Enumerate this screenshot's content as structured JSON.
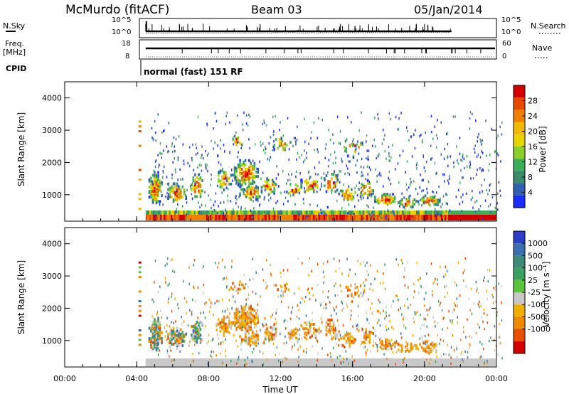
{
  "header": {
    "station": "McMurdo (fitACF)",
    "beam": "Beam 03",
    "date": "05/Jan/2014"
  },
  "left_labels": {
    "nsky": "N.Sky",
    "freq": "Freq.",
    "freq_unit": "[MHz]",
    "cpid": "CPID"
  },
  "right_labels": {
    "nsearch": "N.Search",
    "nave": "Nave"
  },
  "cpid_text": "normal (fast) 151 RF",
  "chart_data": [
    {
      "type": "line",
      "panel": "noise",
      "ytick_labels_left": [
        "10^5",
        "10^0"
      ],
      "ytick_labels_right": [
        "10^5",
        "10^0"
      ],
      "data_start": "04:30",
      "data_end": "21:30"
    },
    {
      "type": "line",
      "panel": "frequency",
      "ytick_labels_left": [
        "18",
        "8"
      ],
      "ytick_labels_right": [
        "60",
        "0"
      ],
      "data_start": "04:30",
      "data_end": "24:00"
    },
    {
      "type": "heatmap",
      "panel": "power",
      "ylabel": "Slant Range [km]",
      "yticks": [
        "1000",
        "2000",
        "3000",
        "4000"
      ],
      "ylim": [
        180,
        4500
      ],
      "colorbar_label": "Power [dB]",
      "colorbar_ticks": [
        "4",
        "8",
        "12",
        "16",
        "20",
        "24",
        "28"
      ],
      "colorbar_colors": [
        "#1a2cff",
        "#3260b0",
        "#3b8a6b",
        "#3cae5a",
        "#8ccf2a",
        "#e8d400",
        "#f2b800",
        "#f08000",
        "#e84a00",
        "#d40000"
      ],
      "xlim": [
        "00:00",
        "24:00"
      ]
    },
    {
      "type": "heatmap",
      "panel": "velocity",
      "ylabel": "Slant Range [km]",
      "yticks": [
        "1000",
        "2000",
        "3000",
        "4000"
      ],
      "ylim": [
        180,
        4500
      ],
      "colorbar_label": "Velocity [m s⁻¹]",
      "colorbar_ticks": [
        "1000",
        "500",
        "100",
        "25",
        "-25",
        "-100",
        "-500",
        "-1000"
      ],
      "colorbar_colors": [
        "#2a3ec8",
        "#3b6fb0",
        "#3e8a7a",
        "#3ca060",
        "#5cc43c",
        "#c8c8c8",
        "#f0b000",
        "#f08a00",
        "#e85000",
        "#d40000"
      ],
      "xlabel": "Time UT",
      "xticks": [
        "00:00",
        "04:00",
        "08:00",
        "12:00",
        "16:00",
        "20:00",
        "00:00"
      ],
      "xlim": [
        "00:00",
        "24:00"
      ]
    }
  ]
}
